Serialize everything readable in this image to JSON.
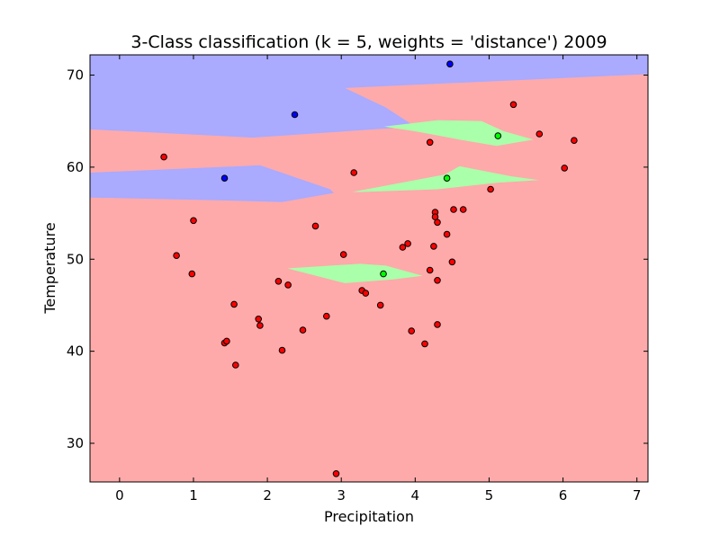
{
  "chart_data": {
    "type": "scatter",
    "title": "3-Class classification (k = 5, weights = 'distance') 2009",
    "xlabel": "Precipitation",
    "ylabel": "Temperature",
    "xlim": [
      -0.4,
      7.15
    ],
    "ylim": [
      25.8,
      72.2
    ],
    "xticks": [
      0,
      1,
      2,
      3,
      4,
      5,
      6,
      7
    ],
    "yticks": [
      30,
      40,
      50,
      60,
      70
    ],
    "grid": false,
    "colors": {
      "region_red": "#FFAAAA",
      "region_blue": "#AAAAFF",
      "region_green": "#AAFFAA",
      "point_red": "#FF0000",
      "point_blue": "#0000FF",
      "point_green": "#00FF00",
      "point_edge": "#000000"
    },
    "regions": [
      {
        "class": "blue",
        "points": [
          [
            -0.4,
            72.2
          ],
          [
            7.15,
            72.2
          ],
          [
            7.15,
            70.1
          ],
          [
            3.05,
            68.6
          ],
          [
            3.6,
            66.5
          ],
          [
            4.0,
            64.4
          ],
          [
            1.8,
            63.2
          ],
          [
            -0.4,
            64.1
          ]
        ]
      },
      {
        "class": "blue",
        "points": [
          [
            -0.4,
            59.4
          ],
          [
            1.9,
            60.2
          ],
          [
            2.85,
            57.6
          ],
          [
            2.9,
            57.2
          ],
          [
            2.2,
            56.2
          ],
          [
            1.3,
            56.4
          ],
          [
            -0.4,
            56.7
          ]
        ]
      },
      {
        "class": "green",
        "points": [
          [
            3.58,
            64.4
          ],
          [
            4.3,
            65.1
          ],
          [
            4.9,
            65.0
          ],
          [
            5.2,
            63.9
          ],
          [
            5.6,
            63.0
          ],
          [
            5.1,
            62.3
          ],
          [
            4.6,
            63.0
          ],
          [
            4.0,
            63.9
          ]
        ]
      },
      {
        "class": "green",
        "points": [
          [
            3.15,
            57.3
          ],
          [
            4.4,
            59.2
          ],
          [
            4.6,
            60.1
          ],
          [
            5.3,
            59.0
          ],
          [
            5.67,
            58.6
          ],
          [
            5.1,
            58.3
          ],
          [
            4.3,
            57.6
          ],
          [
            3.25,
            57.3
          ]
        ]
      },
      {
        "class": "green",
        "points": [
          [
            2.27,
            49.0
          ],
          [
            3.25,
            49.5
          ],
          [
            3.6,
            49.3
          ],
          [
            4.1,
            48.2
          ],
          [
            3.7,
            47.8
          ],
          [
            3.05,
            47.4
          ]
        ]
      }
    ],
    "series": [
      {
        "class": "red",
        "points": [
          [
            0.6,
            61.1
          ],
          [
            0.77,
            50.4
          ],
          [
            0.98,
            48.4
          ],
          [
            1.0,
            54.2
          ],
          [
            1.42,
            40.9
          ],
          [
            1.45,
            41.1
          ],
          [
            1.55,
            45.1
          ],
          [
            1.57,
            38.5
          ],
          [
            1.88,
            43.5
          ],
          [
            1.9,
            42.8
          ],
          [
            2.15,
            47.6
          ],
          [
            2.2,
            40.1
          ],
          [
            2.28,
            47.2
          ],
          [
            2.48,
            42.3
          ],
          [
            2.65,
            53.6
          ],
          [
            2.8,
            43.8
          ],
          [
            2.93,
            26.7
          ],
          [
            3.03,
            50.5
          ],
          [
            3.17,
            59.4
          ],
          [
            3.28,
            46.6
          ],
          [
            3.33,
            46.3
          ],
          [
            3.53,
            45.0
          ],
          [
            3.83,
            51.3
          ],
          [
            3.9,
            51.7
          ],
          [
            3.95,
            42.2
          ],
          [
            4.13,
            40.8
          ],
          [
            4.2,
            48.8
          ],
          [
            4.2,
            62.7
          ],
          [
            4.25,
            51.4
          ],
          [
            4.27,
            55.1
          ],
          [
            4.27,
            54.6
          ],
          [
            4.3,
            54.0
          ],
          [
            4.3,
            47.7
          ],
          [
            4.3,
            42.9
          ],
          [
            4.43,
            52.7
          ],
          [
            4.5,
            49.7
          ],
          [
            4.52,
            55.4
          ],
          [
            4.65,
            55.4
          ],
          [
            5.02,
            57.6
          ],
          [
            5.33,
            66.8
          ],
          [
            5.68,
            63.6
          ],
          [
            6.02,
            59.9
          ],
          [
            6.15,
            62.9
          ]
        ]
      },
      {
        "class": "blue",
        "points": [
          [
            1.42,
            58.8
          ],
          [
            2.37,
            65.7
          ],
          [
            4.47,
            71.2
          ]
        ]
      },
      {
        "class": "green",
        "points": [
          [
            3.57,
            48.4
          ],
          [
            4.43,
            58.8
          ],
          [
            5.12,
            63.4
          ]
        ]
      }
    ]
  }
}
